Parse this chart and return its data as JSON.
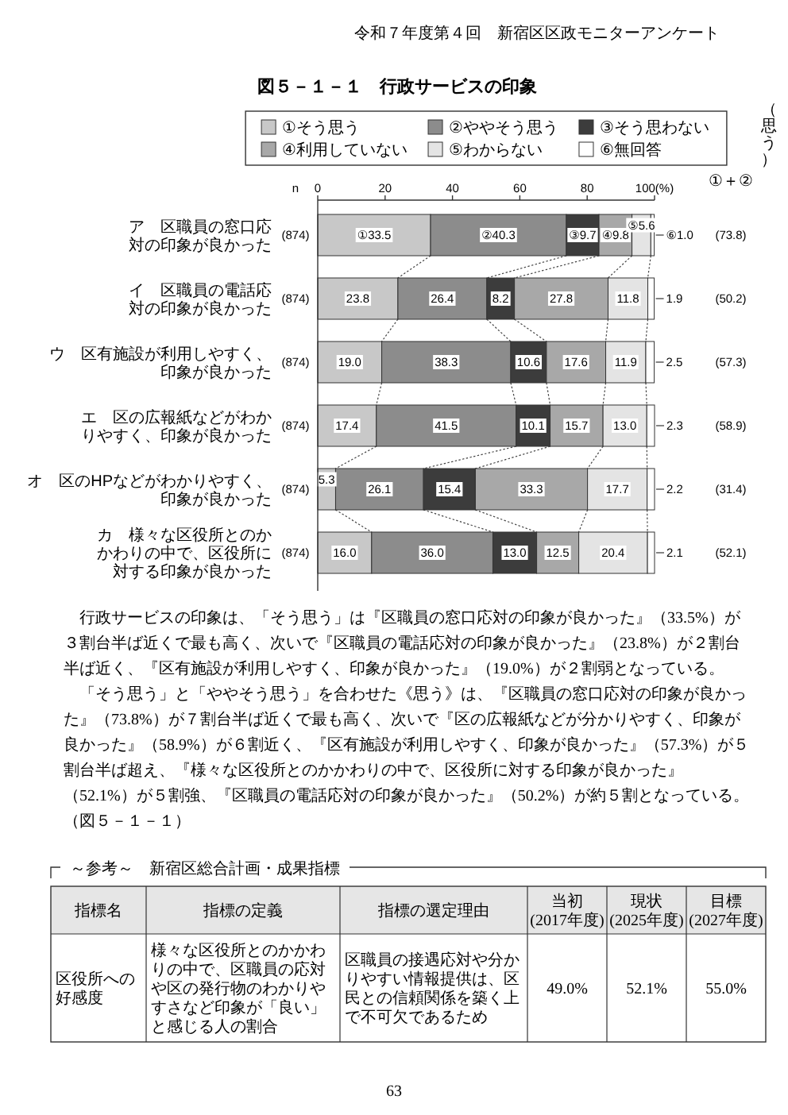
{
  "chart_data": {
    "type": "bar",
    "orientation": "horizontal",
    "stacked": true,
    "title": "図５－１－１　行政サービスの印象",
    "categories": [
      "ア　区職員の窓口応対の印象が良かった",
      "イ　区職員の電話応対の印象が良かった",
      "ウ　区有施設が利用しやすく、印象が良かった",
      "エ　区の広報紙などがわかりやすく、印象が良かった",
      "オ　区のHPなどがわかりやすく、印象が良かった",
      "カ　様々な区役所とのかかわりの中で、区役所に対する印象が良かった"
    ],
    "series": [
      {
        "name": "①そう思う",
        "color": "#c8c8c8",
        "values": [
          33.5,
          23.8,
          19.0,
          17.4,
          5.3,
          16.0
        ],
        "value_labels": [
          "①33.5",
          "23.8",
          "19.0",
          "17.4",
          "5.3",
          "16.0"
        ]
      },
      {
        "name": "②ややそう思う",
        "color": "#8c8c8c",
        "values": [
          40.3,
          26.4,
          38.3,
          41.5,
          26.1,
          36.0
        ],
        "value_labels": [
          "②40.3",
          "26.4",
          "38.3",
          "41.5",
          "26.1",
          "36.0"
        ]
      },
      {
        "name": "③そう思わない",
        "color": "#3c3c3c",
        "values": [
          9.7,
          8.2,
          10.6,
          10.1,
          15.4,
          13.0
        ],
        "value_labels": [
          "③9.7",
          "8.2",
          "10.6",
          "10.1",
          "15.4",
          "13.0"
        ]
      },
      {
        "name": "④利用していない",
        "color": "#a8a8a8",
        "values": [
          9.8,
          27.8,
          17.6,
          15.7,
          33.3,
          12.5
        ],
        "value_labels": [
          "④9.8",
          "27.8",
          "17.6",
          "15.7",
          "33.3",
          "12.5"
        ]
      },
      {
        "name": "⑤わからない",
        "color": "#e4e4e4",
        "values": [
          5.6,
          11.8,
          11.9,
          13.0,
          17.7,
          20.4
        ],
        "value_labels": [
          "⑤5.6",
          "11.8",
          "11.9",
          "13.0",
          "17.7",
          "20.4"
        ]
      },
      {
        "name": "⑥無回答",
        "color": "#ffffff",
        "values": [
          1.0,
          1.9,
          2.5,
          2.3,
          2.2,
          2.1
        ],
        "value_labels": [
          "⑥1.0",
          "1.9",
          "2.5",
          "2.3",
          "2.2",
          "2.1"
        ]
      }
    ],
    "xlim": [
      0,
      100
    ],
    "xticks": [
      0,
      20,
      40,
      60,
      80,
      {
        "value": 100,
        "label": "100(%)"
      }
    ],
    "legend": "top",
    "annotations": [
      "令和７年度第４回　新宿区区政モニターアンケート",
      "（思う）",
      "①＋②",
      "n",
      "行政サービスの印象は、「そう思う」は『区職員の窓口応対の印象が良かった』（33.5%）が３割台半ば近くで最も高く、次いで『区職員の電話応対の印象が良かった』（23.8%）が２割台半ば近く、『区有施設が利用しやすく、印象が良かった』（19.0%）が２割弱となっている。",
      "「そう思う」と「ややそう思う」を合わせた《思う》は、『区職員の窓口応対の印象が良かった』（73.8%）が７割台半ば近くで最も高く、次いで『区の広報紙などが分かりやすく、印象が良かった』（58.9%）が６割近く、『区有施設が利用しやすく、印象が良かった』（57.3%）が５割台半ば超え、『様々な区役所とのかかわりの中で、区役所に対する印象が良かった』（52.1%）が５割強、『区職員の電話応対の印象が良かった』（50.2%）が約５割となっている。（図５－１－１）",
      "～参考～　新宿区総合計画・成果指標",
      "指標名",
      "指標の定義",
      "指標の選定理由",
      "当初\n(2017年度)",
      "現状\n(2025年度)",
      "目標\n(2027年度)",
      "区役所への好感度",
      "様々な区役所とのかかわりの中で、区職員の応対や区の発行物のわかりやすさなど印象が「良い」と感じる人の割合",
      "区職員の接遇応対や分かりやすい情報提供は、区民との信頼関係を築く上で不可欠であるため",
      "49.0%",
      "52.1%",
      "55.0%",
      "63",
      "(874)",
      "(874)",
      "(874)",
      "(874)",
      "(874)",
      "(874)",
      "(73.8)",
      "(50.2)",
      "(57.3)",
      "(58.9)",
      "(31.4)",
      "(52.1)"
    ]
  }
}
